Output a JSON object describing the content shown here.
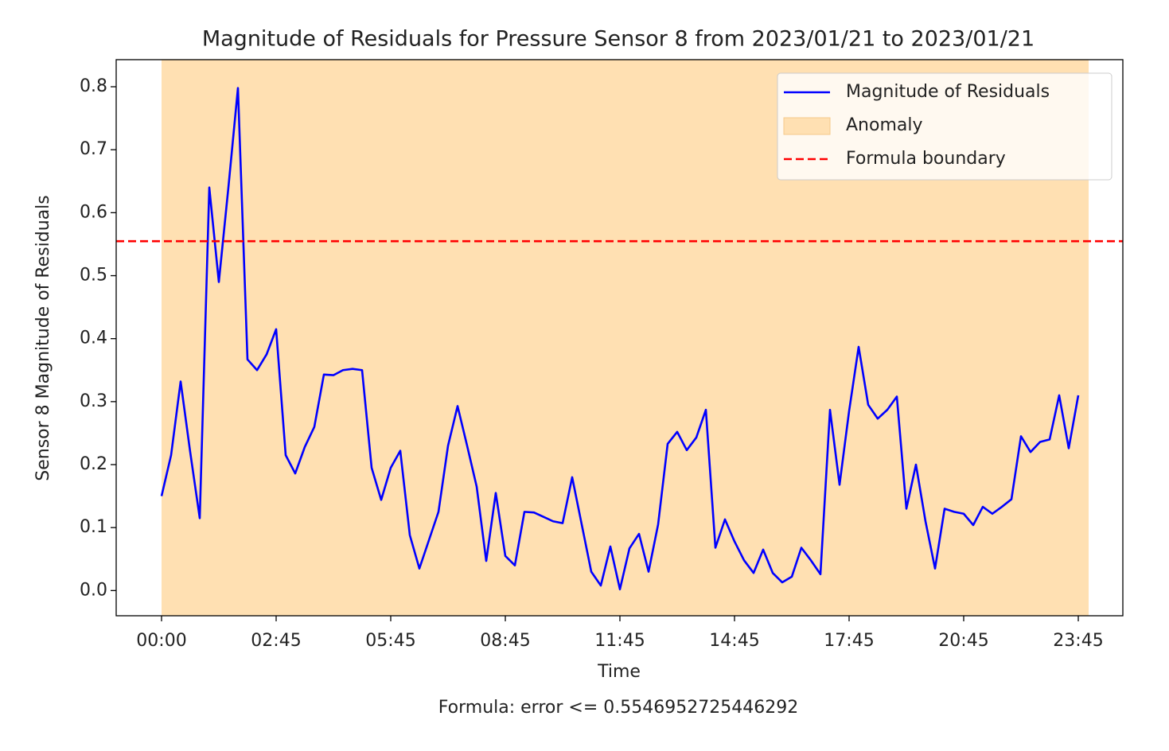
{
  "chart_data": {
    "type": "line",
    "title": "Magnitude of Residuals for Pressure Sensor 8 from 2023/01/21 to 2023/01/21",
    "xlabel": "Time",
    "ylabel": "Sensor 8 Magnitude of Residuals",
    "footnote": "Formula: error <= 0.5546952725446292",
    "categories": [
      "00:00",
      null,
      null,
      null,
      null,
      null,
      null,
      null,
      null,
      null,
      null,
      null,
      "02:45",
      null,
      null,
      null,
      null,
      null,
      null,
      null,
      null,
      null,
      null,
      null,
      "05:45",
      null,
      null,
      null,
      null,
      null,
      null,
      null,
      null,
      null,
      null,
      null,
      "08:45",
      null,
      null,
      null,
      null,
      null,
      null,
      null,
      null,
      null,
      null,
      null,
      "11:45",
      null,
      null,
      null,
      null,
      null,
      null,
      null,
      null,
      null,
      null,
      null,
      "14:45",
      null,
      null,
      null,
      null,
      null,
      null,
      null,
      null,
      null,
      null,
      null,
      "17:45",
      null,
      null,
      null,
      null,
      null,
      null,
      null,
      null,
      null,
      null,
      null,
      "20:45",
      null,
      null,
      null,
      null,
      null,
      null,
      null,
      null,
      null,
      null,
      null,
      "23:45"
    ],
    "series": [
      {
        "name": "Magnitude of Residuals",
        "color": "#0000ff",
        "values": [
          0.15,
          0.215,
          0.332,
          0.22,
          0.115,
          0.64,
          0.49,
          0.64,
          0.798,
          0.367,
          0.35,
          0.375,
          0.415,
          0.215,
          0.186,
          0.228,
          0.26,
          0.343,
          0.342,
          0.35,
          0.352,
          0.35,
          0.195,
          0.144,
          0.195,
          0.222,
          0.088,
          0.035,
          0.08,
          0.125,
          0.23,
          0.293,
          0.23,
          0.165,
          0.047,
          0.155,
          0.055,
          0.04,
          0.125,
          0.124,
          0.117,
          0.11,
          0.107,
          0.18,
          0.105,
          0.03,
          0.008,
          0.07,
          0.002,
          0.067,
          0.09,
          0.03,
          0.105,
          0.233,
          0.252,
          0.223,
          0.243,
          0.287,
          0.068,
          0.113,
          0.078,
          0.048,
          0.028,
          0.065,
          0.028,
          0.013,
          0.022,
          0.068,
          0.048,
          0.026,
          0.287,
          0.168,
          0.285,
          0.387,
          0.295,
          0.273,
          0.287,
          0.308,
          0.13,
          0.2,
          0.11,
          0.035,
          0.13,
          0.125,
          0.122,
          0.104,
          0.133,
          0.122,
          0.133,
          0.145,
          0.245,
          0.22,
          0.236,
          0.24,
          0.31,
          0.226,
          0.31
        ]
      }
    ],
    "anomaly": {
      "name": "Anomaly",
      "color": "#ffe0b2"
    },
    "boundary": {
      "name": "Formula boundary",
      "value": 0.5546952725446292,
      "color": "#ff0000"
    },
    "ylim": [
      -0.04,
      0.843
    ],
    "yticks": [
      {
        "value": 0,
        "label": "0.0"
      },
      0.1,
      0.2,
      0.3,
      0.4,
      0.5,
      0.6,
      0.7,
      0.8
    ],
    "legend": "upper right"
  }
}
